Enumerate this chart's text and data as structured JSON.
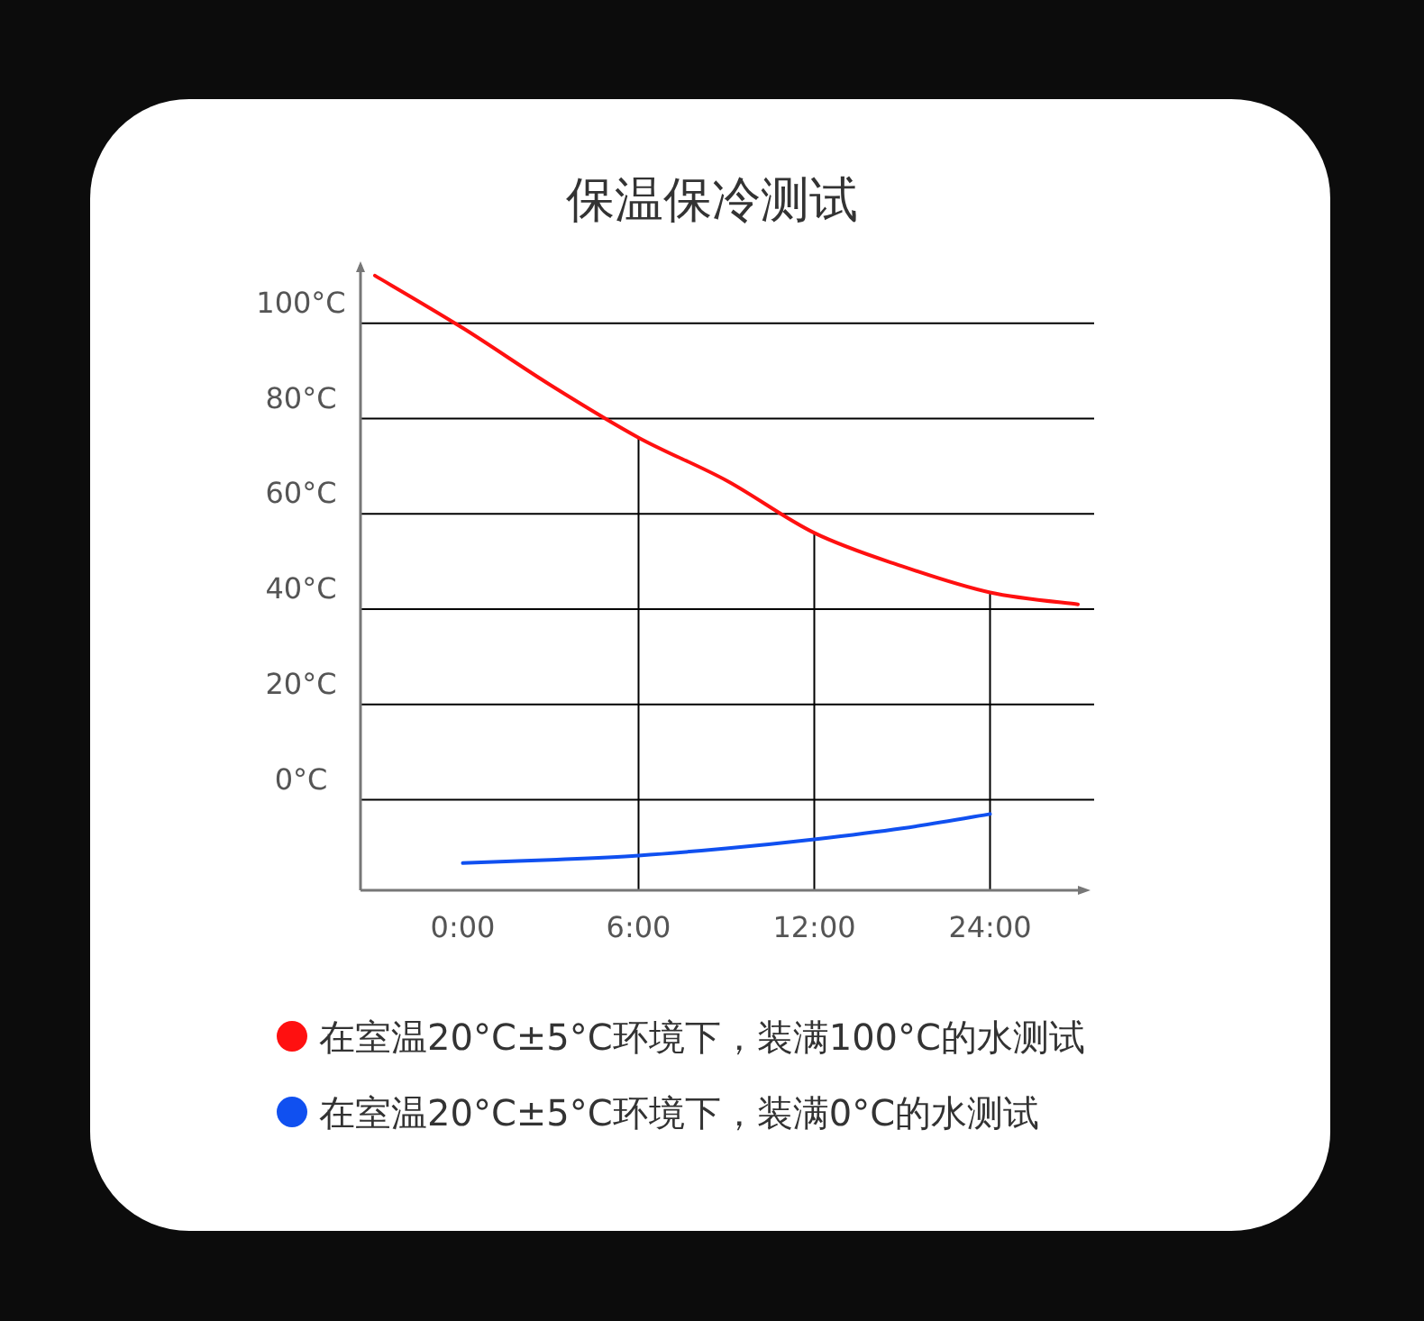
{
  "chart_data": {
    "type": "line",
    "title": "保温保冷测试",
    "categories": [
      null,
      "0:00",
      null,
      "6:00",
      null,
      "12:00",
      null,
      "24:00",
      null
    ],
    "series": [
      {
        "name": "在室温20°C±5°C环境下，装满100°C的水测试",
        "color": "#ff1010",
        "values": [
          110,
          99,
          87,
          76,
          67,
          56,
          49,
          43.5,
          41
        ]
      },
      {
        "name": "在室温20°C±5°C环境下，装满0°C的水测试",
        "color": "#1050f0",
        "values": [
          null,
          -13.3,
          -12.6,
          -11.7,
          -10.2,
          -8.3,
          -6,
          -3,
          null
        ]
      }
    ],
    "ylim": [
      -19,
      113
    ],
    "yticks": [
      {
        "value": 0,
        "label": "0°C"
      },
      {
        "value": 20,
        "label": "20°C"
      },
      {
        "value": 40,
        "label": "40°C"
      },
      {
        "value": 60,
        "label": "60°C"
      },
      {
        "value": 80,
        "label": "80°C"
      },
      {
        "value": 100,
        "label": "100°C"
      }
    ],
    "ref_lines": [
      {
        "axis": "x",
        "value": "6:00",
        "label": null
      },
      {
        "axis": "x",
        "value": "12:00",
        "label": null
      },
      {
        "axis": "x",
        "value": "24:00",
        "label": null
      }
    ],
    "grid": "y",
    "legend": "bottom",
    "marker": "none",
    "line_style": "solid"
  }
}
